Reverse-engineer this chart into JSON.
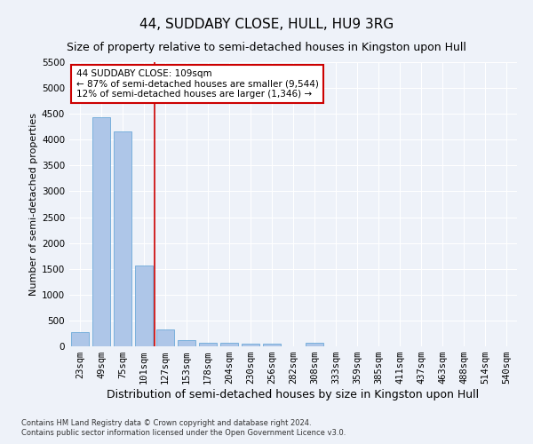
{
  "title": "44, SUDDABY CLOSE, HULL, HU9 3RG",
  "subtitle": "Size of property relative to semi-detached houses in Kingston upon Hull",
  "xlabel": "Distribution of semi-detached houses by size in Kingston upon Hull",
  "ylabel": "Number of semi-detached properties",
  "footer_line1": "Contains HM Land Registry data © Crown copyright and database right 2024.",
  "footer_line2": "Contains public sector information licensed under the Open Government Licence v3.0.",
  "bar_labels": [
    "23sqm",
    "49sqm",
    "75sqm",
    "101sqm",
    "127sqm",
    "153sqm",
    "178sqm",
    "204sqm",
    "230sqm",
    "256sqm",
    "282sqm",
    "308sqm",
    "333sqm",
    "359sqm",
    "385sqm",
    "411sqm",
    "437sqm",
    "463sqm",
    "488sqm",
    "514sqm",
    "540sqm"
  ],
  "bar_values": [
    280,
    4430,
    4160,
    1560,
    320,
    120,
    75,
    65,
    60,
    55,
    0,
    65,
    0,
    0,
    0,
    0,
    0,
    0,
    0,
    0,
    0
  ],
  "bar_color": "#aec6e8",
  "bar_edge_color": "#5a9fd4",
  "vline_color": "#cc0000",
  "annotation_text": "44 SUDDABY CLOSE: 109sqm\n← 87% of semi-detached houses are smaller (9,544)\n12% of semi-detached houses are larger (1,346) →",
  "annotation_box_color": "#ffffff",
  "annotation_box_edge": "#cc0000",
  "ylim": [
    0,
    5500
  ],
  "yticks": [
    0,
    500,
    1000,
    1500,
    2000,
    2500,
    3000,
    3500,
    4000,
    4500,
    5000,
    5500
  ],
  "background_color": "#eef2f9",
  "plot_background": "#eef2f9",
  "grid_color": "#ffffff",
  "title_fontsize": 11,
  "subtitle_fontsize": 9,
  "tick_fontsize": 7.5,
  "ylabel_fontsize": 8,
  "xlabel_fontsize": 9,
  "footer_fontsize": 6
}
